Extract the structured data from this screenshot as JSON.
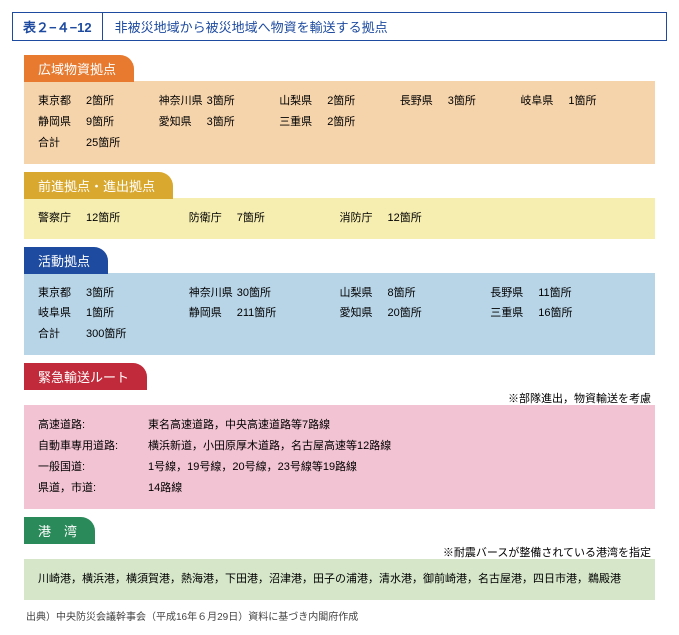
{
  "title": {
    "number": "表２−４−12",
    "text": "非被災地域から被災地域へ物資を輸送する拠点"
  },
  "colors": {
    "s1_tab": "#e77a2f",
    "s1_panel": "#f6d4ab",
    "s2_tab": "#d9a82f",
    "s2_panel": "#f6eeb0",
    "s3_tab": "#1e4ba0",
    "s3_panel": "#b8d5e8",
    "s4_tab": "#c02a3a",
    "s4_panel": "#f2c3d2",
    "s5_tab": "#2a8a5a",
    "s5_panel": "#d5e6c9"
  },
  "s1": {
    "title": "広域物資拠点",
    "items": [
      [
        "東京都",
        "2箇所"
      ],
      [
        "神奈川県",
        "3箇所"
      ],
      [
        "山梨県",
        "2箇所"
      ],
      [
        "長野県",
        "3箇所"
      ],
      [
        "岐阜県",
        "1箇所"
      ],
      [
        "静岡県",
        "9箇所"
      ],
      [
        "愛知県",
        "3箇所"
      ],
      [
        "三重県",
        "2箇所"
      ]
    ],
    "total_label": "合計",
    "total_value": "25箇所"
  },
  "s2": {
    "title": "前進拠点・進出拠点",
    "items": [
      [
        "警察庁",
        "12箇所"
      ],
      [
        "防衛庁",
        "7箇所"
      ],
      [
        "消防庁",
        "12箇所"
      ]
    ]
  },
  "s3": {
    "title": "活動拠点",
    "items": [
      [
        "東京都",
        "3箇所"
      ],
      [
        "神奈川県",
        "30箇所"
      ],
      [
        "山梨県",
        "8箇所"
      ],
      [
        "長野県",
        "11箇所"
      ],
      [
        "岐阜県",
        "1箇所"
      ],
      [
        "静岡県",
        "211箇所"
      ],
      [
        "愛知県",
        "20箇所"
      ],
      [
        "三重県",
        "16箇所"
      ]
    ],
    "total_label": "合計",
    "total_value": "300箇所"
  },
  "s4": {
    "title": "緊急輸送ルート",
    "note": "※部隊進出，物資輸送を考慮",
    "rows": [
      [
        "高速道路:",
        "東名高速道路，中央高速道路等7路線"
      ],
      [
        "自動車専用道路:",
        "横浜新道，小田原厚木道路，名古屋高速等12路線"
      ],
      [
        "一般国道:",
        "1号線，19号線，20号線，23号線等19路線"
      ],
      [
        "県道，市道:",
        "14路線"
      ]
    ]
  },
  "s5": {
    "title": "港　湾",
    "note": "※耐震バースが整備されている港湾を指定",
    "body": "川崎港，横浜港，横須賀港，熱海港，下田港，沼津港，田子の浦港，清水港，御前崎港，名古屋港，四日市港，鵜殿港"
  },
  "source": "出典）中央防災会議幹事会（平成16年６月29日）資料に基づき内閣府作成"
}
